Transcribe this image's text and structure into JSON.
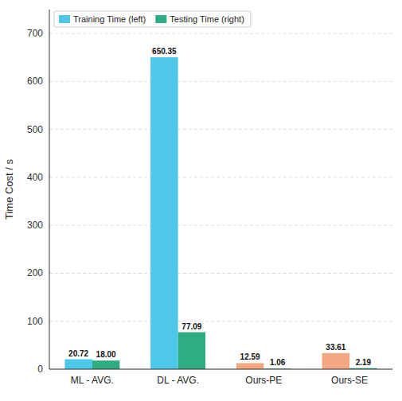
{
  "chart_data": {
    "type": "bar",
    "categories": [
      "ML - AVG.",
      "DL - AVG.",
      "Ours-PE",
      "Ours-SE"
    ],
    "ylabel": "Time Cost / s",
    "ylim": [
      0,
      750
    ],
    "yticks": [
      0,
      100,
      200,
      300,
      400,
      500,
      600,
      700
    ],
    "grid": true,
    "legend": "upper left",
    "data_labels": true,
    "series": [
      {
        "name": "Training Time (left)",
        "color": "#4DC8E8",
        "colors": [
          "#4DC8E8",
          "#4DC8E8",
          "#F4A882",
          "#F4A882"
        ],
        "values": [
          20.72,
          650.35,
          12.59,
          33.61
        ],
        "value_labels": [
          "20.72",
          "650.35",
          "12.59",
          "33.61"
        ]
      },
      {
        "name": "Testing Time (right)",
        "color": "#2EAD80",
        "colors": [
          "#2EAD80",
          "#2EAD80",
          "#2EAD80",
          "#2EAD80"
        ],
        "values": [
          18.0,
          77.09,
          1.06,
          2.19
        ],
        "value_labels": [
          "18.00",
          "77.09",
          "1.06",
          "2.19"
        ]
      }
    ]
  }
}
